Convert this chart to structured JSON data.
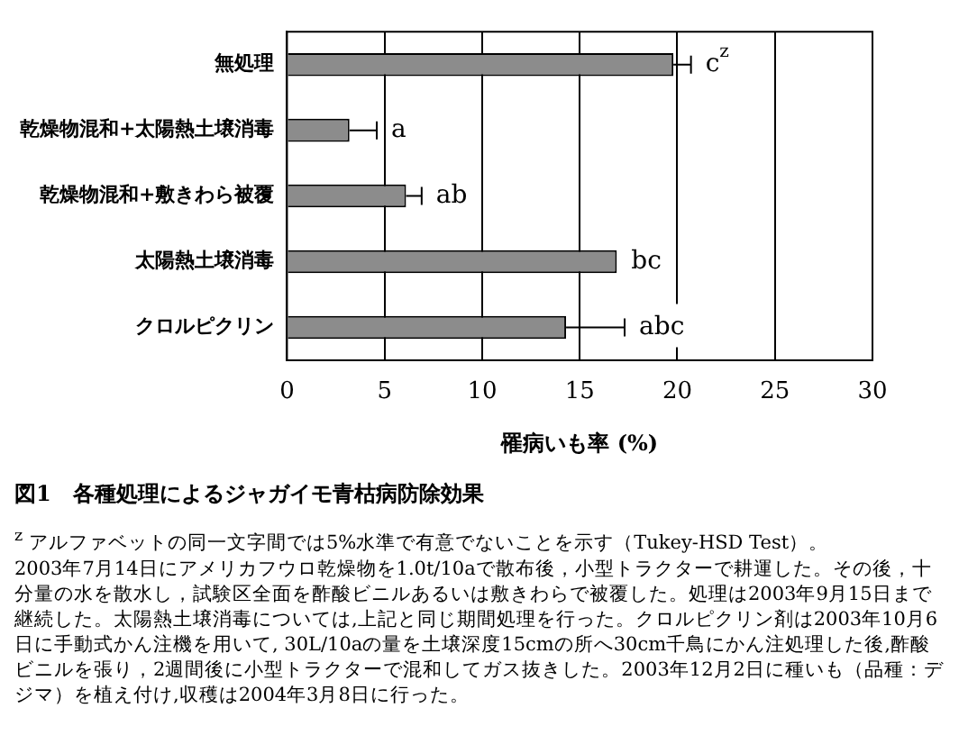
{
  "chart_data": {
    "type": "bar",
    "orientation": "horizontal",
    "title": "図1　各種処理によるジャガイモ青枯病防除効果",
    "xlabel": "罹病いも率 (%)",
    "categories": [
      "無処理",
      "乾燥物混和+太陽熱土壌消毒",
      "乾燥物混和+敷きわら被覆",
      "太陽熱土壌消毒",
      "クロルピクリン"
    ],
    "values": [
      19.8,
      3.2,
      6.1,
      16.9,
      14.3
    ],
    "errors": [
      0.9,
      1.4,
      0.8,
      null,
      3.0
    ],
    "color": "#8c8c8c",
    "xlim": [
      0,
      30
    ],
    "xticks": [
      0,
      5,
      10,
      15,
      20,
      25,
      30
    ],
    "grid": "x",
    "annotations": [
      {
        "text": "c$^{z}$",
        "x": 20.7,
        "y": "無処理"
      },
      {
        "text": "a",
        "x": 4.6,
        "y": "乾燥物混和+太陽熱土壌消毒"
      },
      {
        "text": "ab",
        "x": 6.9,
        "y": "乾燥物混和+敷きわら被覆"
      },
      {
        "text": "bc",
        "x": 16.9,
        "y": "太陽熱土壌消毒"
      },
      {
        "text": "abc",
        "x": 17.3,
        "y": "クロルピクリン"
      },
      "$^{z}$ アルファベットの同一文字間では5%水準で有意でないことを示す（Tukey-HSD Test）。",
      "2003年7月14日にアメリカフウロ乾燥物を1.0t/10aで散布後，小型トラクターで耕運した。その後，十分量の水を散水し，試験区全面を酢酸ビニルあるいは敷きわらで被覆した。処理は2003年9月15日まで継続した。太陽熱土壌消毒については,上記と同じ期間処理を行った。クロルピクリン剤は2003年10月6日に手動式かん注機を用いて, 30L/10aの量を土壌深度15cmの所へ30cm千鳥にかん注処理した後,酢酸ビニルを張り，2週間後に小型トラクターで混和してガス抜きした。2003年12月2日に種いも（品種：デジマ）を植え付け,収穫は2004年3月8日に行った。"
    ]
  }
}
